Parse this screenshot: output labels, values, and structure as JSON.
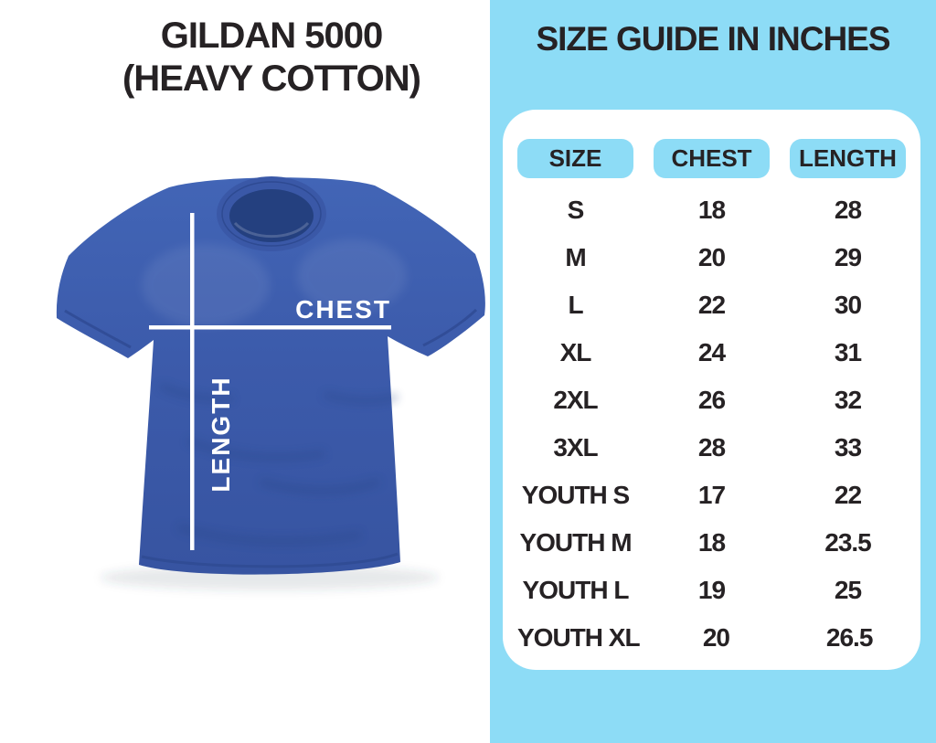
{
  "page": {
    "background": "#ffffff"
  },
  "product": {
    "title_line1": "GILDAN 5000",
    "title_line2": "(HEAVY COTTON)",
    "shirt_color": "#3d5dad",
    "measure_line_color": "#ffffff",
    "chest_label": "CHEST",
    "length_label": "LENGTH"
  },
  "size_guide": {
    "title": "SIZE GUIDE IN INCHES",
    "panel_color": "#8ddcf6",
    "card_color": "#ffffff",
    "text_color": "#262224",
    "columns": [
      "SIZE",
      "CHEST",
      "LENGTH"
    ],
    "rows": [
      {
        "size": "S",
        "chest": "18",
        "length": "28"
      },
      {
        "size": "M",
        "chest": "20",
        "length": "29"
      },
      {
        "size": "L",
        "chest": "22",
        "length": "30"
      },
      {
        "size": "XL",
        "chest": "24",
        "length": "31"
      },
      {
        "size": "2XL",
        "chest": "26",
        "length": "32"
      },
      {
        "size": "3XL",
        "chest": "28",
        "length": "33"
      },
      {
        "size": "YOUTH S",
        "chest": "17",
        "length": "22"
      },
      {
        "size": "YOUTH M",
        "chest": "18",
        "length": "23.5"
      },
      {
        "size": "YOUTH L",
        "chest": "19",
        "length": "25"
      },
      {
        "size": "YOUTH XL",
        "chest": "20",
        "length": "26.5"
      }
    ]
  },
  "chart_data": {
    "type": "table",
    "title": "SIZE GUIDE IN INCHES",
    "units": "inches",
    "columns": [
      "SIZE",
      "CHEST",
      "LENGTH"
    ],
    "rows": [
      [
        "S",
        18,
        28
      ],
      [
        "M",
        20,
        29
      ],
      [
        "L",
        22,
        30
      ],
      [
        "XL",
        24,
        31
      ],
      [
        "2XL",
        26,
        32
      ],
      [
        "3XL",
        28,
        33
      ],
      [
        "YOUTH S",
        17,
        22
      ],
      [
        "YOUTH M",
        18,
        23.5
      ],
      [
        "YOUTH L",
        19,
        25
      ],
      [
        "YOUTH XL",
        20,
        26.5
      ]
    ]
  }
}
